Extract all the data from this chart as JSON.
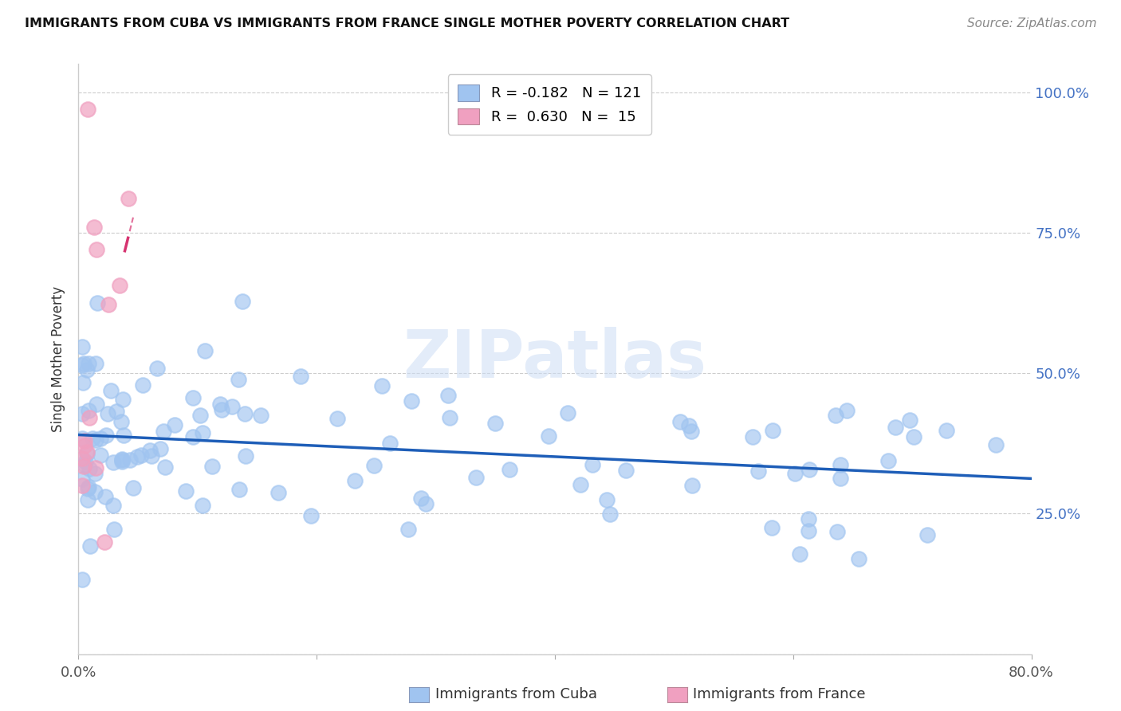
{
  "title": "IMMIGRANTS FROM CUBA VS IMMIGRANTS FROM FRANCE SINGLE MOTHER POVERTY CORRELATION CHART",
  "source": "Source: ZipAtlas.com",
  "ylabel": "Single Mother Poverty",
  "xlim": [
    0.0,
    0.8
  ],
  "ylim": [
    0.0,
    1.05
  ],
  "yticks": [
    0.0,
    0.25,
    0.5,
    0.75,
    1.0
  ],
  "ytick_labels_right": [
    "",
    "25.0%",
    "50.0%",
    "75.0%",
    "100.0%"
  ],
  "xtick_vals": [
    0.0,
    0.2,
    0.4,
    0.6,
    0.8
  ],
  "xtick_labels": [
    "0.0%",
    "",
    "",
    "",
    "80.0%"
  ],
  "cuba_color": "#a0c4f0",
  "france_color": "#f0a0c0",
  "cuba_line_color": "#1e5eb8",
  "france_line_color": "#d63370",
  "right_tick_color": "#4472C4",
  "watermark": "ZIPatlas",
  "legend_label_cuba": "R = -0.182   N = 121",
  "legend_label_france": "R =  0.630   N =  15",
  "bottom_label_cuba": "Immigrants from Cuba",
  "bottom_label_france": "Immigrants from France",
  "cuba_seed": 42,
  "france_seed": 99
}
